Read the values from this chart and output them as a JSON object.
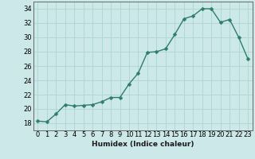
{
  "x": [
    0,
    1,
    2,
    3,
    4,
    5,
    6,
    7,
    8,
    9,
    10,
    11,
    12,
    13,
    14,
    15,
    16,
    17,
    18,
    19,
    20,
    21,
    22,
    23
  ],
  "y": [
    18.3,
    18.2,
    19.3,
    20.6,
    20.4,
    20.5,
    20.6,
    21.0,
    21.6,
    21.6,
    23.5,
    25.0,
    27.9,
    28.0,
    28.4,
    30.4,
    32.6,
    33.0,
    34.0,
    34.0,
    32.1,
    32.5,
    30.0,
    27.0
  ],
  "xlabel": "Humidex (Indice chaleur)",
  "xlim": [
    -0.5,
    23.5
  ],
  "ylim": [
    17,
    35
  ],
  "yticks": [
    18,
    20,
    22,
    24,
    26,
    28,
    30,
    32,
    34
  ],
  "xticks": [
    0,
    1,
    2,
    3,
    4,
    5,
    6,
    7,
    8,
    9,
    10,
    11,
    12,
    13,
    14,
    15,
    16,
    17,
    18,
    19,
    20,
    21,
    22,
    23
  ],
  "line_color": "#2e7d6e",
  "marker_color": "#2e7d6e",
  "bg_color": "#cce8e8",
  "grid_color": "#afd4d4",
  "xlabel_fontsize": 6.5,
  "tick_fontsize": 6.0,
  "line_width": 1.0,
  "marker_size": 2.5
}
